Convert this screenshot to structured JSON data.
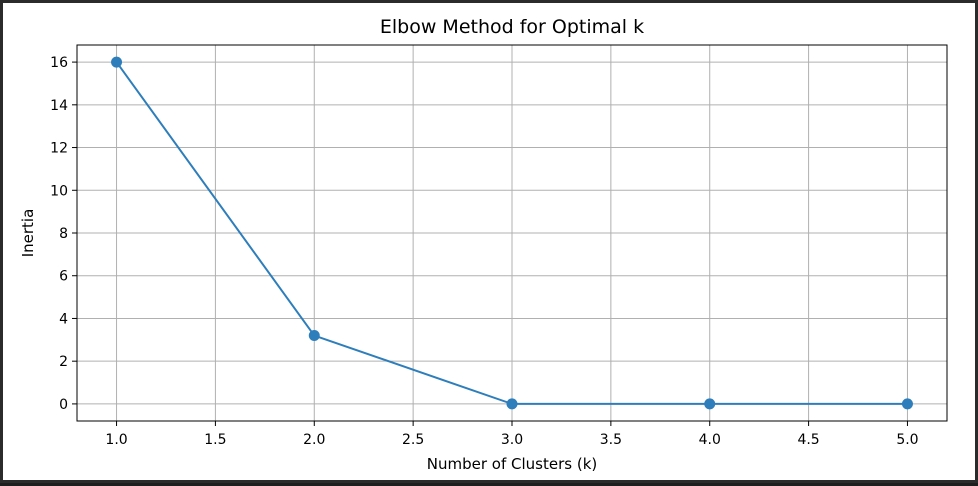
{
  "chart_data": {
    "type": "line",
    "title": "Elbow Method for Optimal k",
    "xlabel": "Number of Clusters (k)",
    "ylabel": "Inertia",
    "x": [
      1,
      2,
      3,
      4,
      5
    ],
    "series": [
      {
        "values": [
          16.0,
          3.2,
          0.0,
          0.0,
          0.0
        ]
      }
    ],
    "xlim": [
      0.8,
      5.2
    ],
    "ylim": [
      -0.8,
      16.8
    ],
    "xticks": [
      1.0,
      1.5,
      2.0,
      2.5,
      3.0,
      3.5,
      4.0,
      4.5,
      5.0
    ],
    "xtick_labels": [
      "1.0",
      "1.5",
      "2.0",
      "2.5",
      "3.0",
      "3.5",
      "4.0",
      "4.5",
      "5.0"
    ],
    "yticks": [
      0,
      2,
      4,
      6,
      8,
      10,
      12,
      14,
      16
    ],
    "ytick_labels": [
      "0",
      "2",
      "4",
      "6",
      "8",
      "10",
      "12",
      "14",
      "16"
    ],
    "grid": true,
    "marker": "circle",
    "color": "#2e7ebc",
    "grid_color": "#b0b0b0"
  }
}
